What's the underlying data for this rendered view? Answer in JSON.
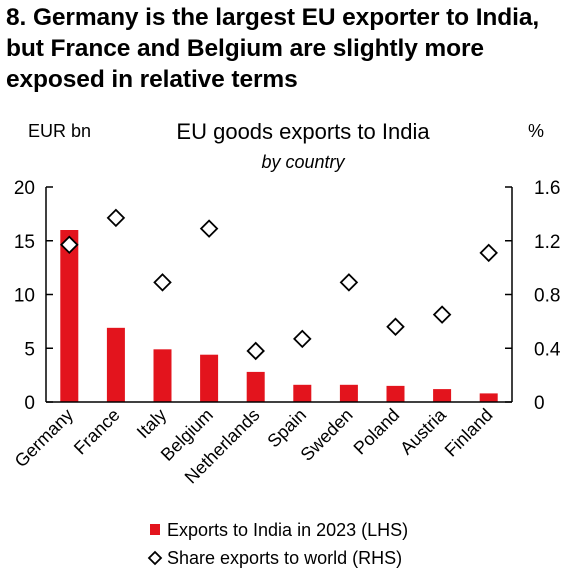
{
  "headline": "8. Germany is the largest EU exporter to India, but France and Belgium are slightly more exposed in relative terms",
  "chart_data": {
    "type": "bar",
    "title": "EU goods exports to India",
    "subtitle": "by country",
    "ylabel_left": "EUR bn",
    "ylabel_right": "%",
    "categories": [
      "Germany",
      "France",
      "Italy",
      "Belgium",
      "Netherlands",
      "Spain",
      "Sweden",
      "Poland",
      "Austria",
      "Finland"
    ],
    "series": [
      {
        "name": "Exports to India in 2023 (LHS)",
        "type": "bar",
        "axis": "left",
        "color": "#e3141d",
        "values": [
          16.0,
          6.9,
          4.9,
          4.4,
          2.8,
          1.6,
          1.6,
          1.5,
          1.2,
          0.8
        ]
      },
      {
        "name": "Share exports to world (RHS)",
        "type": "scatter",
        "marker": "diamond",
        "axis": "right",
        "color": "#000000",
        "values": [
          1.17,
          1.37,
          0.89,
          1.29,
          0.38,
          0.47,
          0.89,
          0.56,
          0.65,
          1.11
        ]
      }
    ],
    "ylim_left": [
      0,
      20
    ],
    "yticks_left": [
      "0",
      "5",
      "10",
      "15",
      "20"
    ],
    "ylim_right": [
      0,
      1.6
    ],
    "yticks_right": [
      "0",
      "0.4",
      "0.8",
      "1.2",
      "1.6"
    ],
    "grid": false,
    "legend_position": "bottom"
  }
}
